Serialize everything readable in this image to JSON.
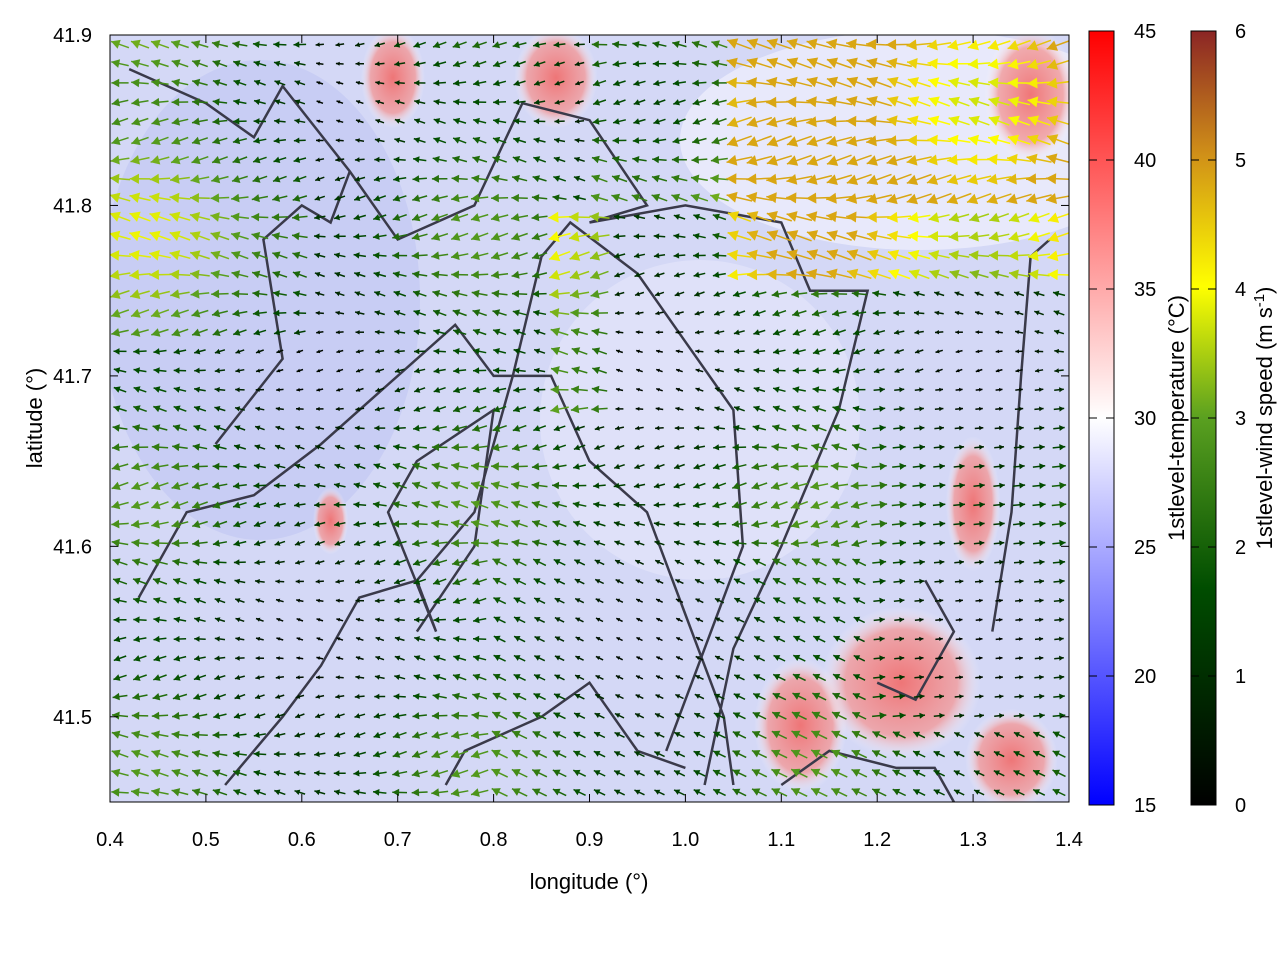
{
  "chart_data": {
    "type": "heatmap",
    "title": "",
    "xlabel": "longitude (°)",
    "ylabel": "latitude (°)",
    "xlim": [
      0.4,
      1.4
    ],
    "ylim": [
      41.45,
      41.9
    ],
    "x_ticks": [
      "0.4",
      "0.5",
      "0.6",
      "0.7",
      "0.8",
      "0.9",
      "1.0",
      "1.1",
      "1.2",
      "1.3",
      "1.4"
    ],
    "y_ticks": [
      "41.5",
      "41.6",
      "41.7",
      "41.8",
      "41.9"
    ],
    "field": {
      "name": "1stlevel-temperature",
      "unit_label": "1stlevel-temperature (°C)",
      "range": [
        15,
        45
      ],
      "ticks": [
        "15",
        "20",
        "25",
        "30",
        "35",
        "40",
        "45"
      ],
      "colors": [
        "#0000ff",
        "#ffffff",
        "#ff0000"
      ],
      "hot_regions": [
        {
          "lon": [
            0.62,
            0.64
          ],
          "lat": [
            41.6,
            41.63
          ]
        },
        {
          "lon": [
            1.08,
            1.16
          ],
          "lat": [
            41.46,
            41.53
          ]
        },
        {
          "lon": [
            1.15,
            1.3
          ],
          "lat": [
            41.48,
            41.56
          ]
        },
        {
          "lon": [
            1.28,
            1.32
          ],
          "lat": [
            41.59,
            41.66
          ]
        },
        {
          "lon": [
            1.3,
            1.38
          ],
          "lat": [
            41.45,
            41.5
          ]
        },
        {
          "lon": [
            0.67,
            0.72
          ],
          "lat": [
            41.85,
            41.9
          ]
        },
        {
          "lon": [
            0.83,
            0.9
          ],
          "lat": [
            41.85,
            41.9
          ]
        },
        {
          "lon": [
            1.32,
            1.4
          ],
          "lat": [
            41.83,
            41.9
          ]
        }
      ]
    },
    "vectors": {
      "name": "1stlevel-wind speed",
      "unit_label": "1stlevel-wind speed (m s-1)",
      "range": [
        0,
        6
      ],
      "ticks": [
        "0",
        "1",
        "2",
        "3",
        "4",
        "5",
        "6"
      ],
      "colors": [
        "#000000",
        "#006400",
        "#66aa22",
        "#ffff00",
        "#cc8800",
        "#8b2525"
      ],
      "dominant_direction": "westward"
    },
    "boundary_lines_color": "#3a3a4a",
    "grid": false
  }
}
